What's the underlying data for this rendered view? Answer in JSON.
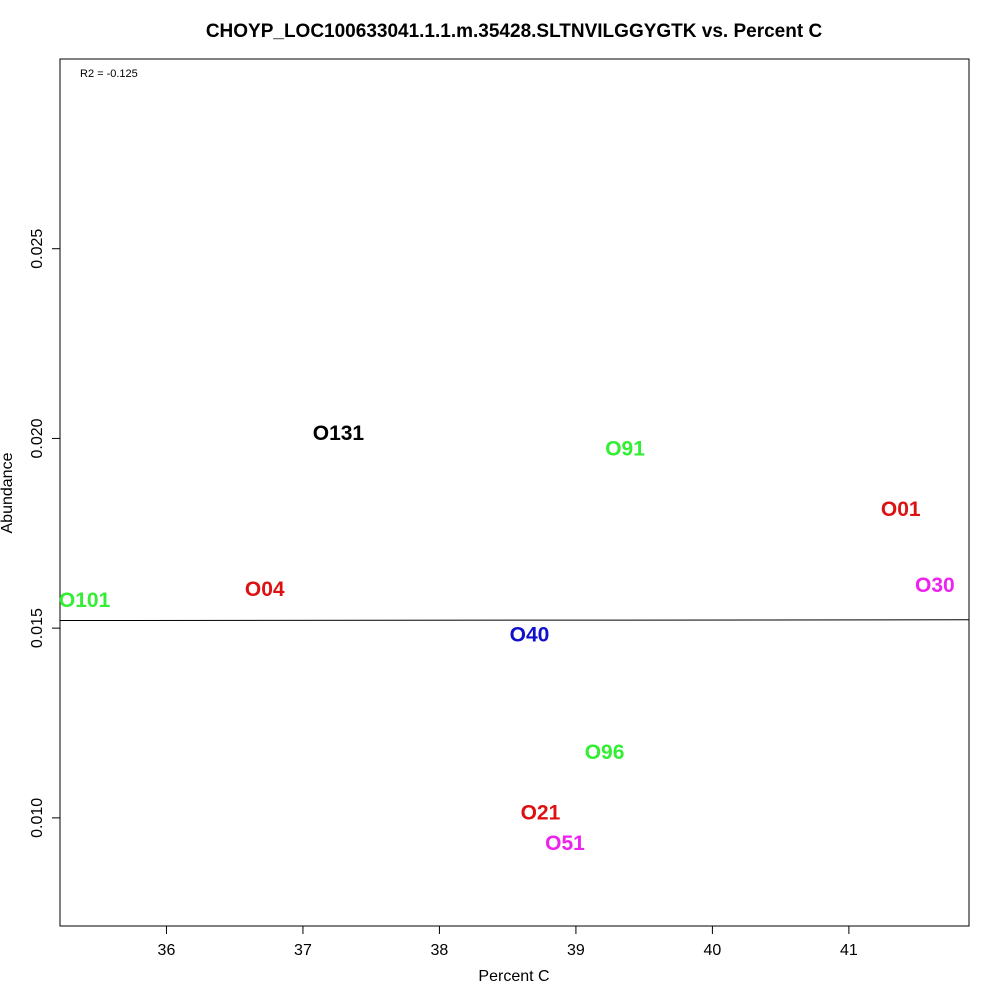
{
  "chart_data": {
    "type": "scatter",
    "title": "CHOYP_LOC100633041.1.1.m.35428.SLTNVILGGYGTK vs. Percent C",
    "xlabel": "Percent C",
    "ylabel": "Abundance",
    "annotation": "R2 = -0.125",
    "xlim": [
      35.22,
      41.88
    ],
    "ylim": [
      0.00715,
      0.03
    ],
    "xticks": [
      36,
      37,
      38,
      39,
      40,
      41
    ],
    "yticks": [
      0.01,
      0.015,
      0.02,
      0.025
    ],
    "xtick_labels": [
      "36",
      "37",
      "38",
      "39",
      "40",
      "41"
    ],
    "ytick_labels": [
      "0.010",
      "0.015",
      "0.020",
      "0.025"
    ],
    "grid": false,
    "legend": "none",
    "regression_line": {
      "y_at_xmin": 0.0152,
      "y_at_xmax": 0.01522,
      "color": "#000000"
    },
    "points": [
      {
        "label": "O131",
        "x": 37.26,
        "y": 0.0201,
        "color": "#000000"
      },
      {
        "label": "O91",
        "x": 39.36,
        "y": 0.0197,
        "color": "#33ee33"
      },
      {
        "label": "O01",
        "x": 41.38,
        "y": 0.0181,
        "color": "#dd1111"
      },
      {
        "label": "O30",
        "x": 41.63,
        "y": 0.0161,
        "color": "#ee22ee"
      },
      {
        "label": "O04",
        "x": 36.72,
        "y": 0.016,
        "color": "#dd1111"
      },
      {
        "label": "O101",
        "x": 35.4,
        "y": 0.0157,
        "color": "#33ee33"
      },
      {
        "label": "O40",
        "x": 38.66,
        "y": 0.0148,
        "color": "#1111cc"
      },
      {
        "label": "O96",
        "x": 39.21,
        "y": 0.0117,
        "color": "#33ee33"
      },
      {
        "label": "O21",
        "x": 38.74,
        "y": 0.0101,
        "color": "#dd1111"
      },
      {
        "label": "O51",
        "x": 38.92,
        "y": 0.0093,
        "color": "#ee22ee"
      }
    ]
  }
}
